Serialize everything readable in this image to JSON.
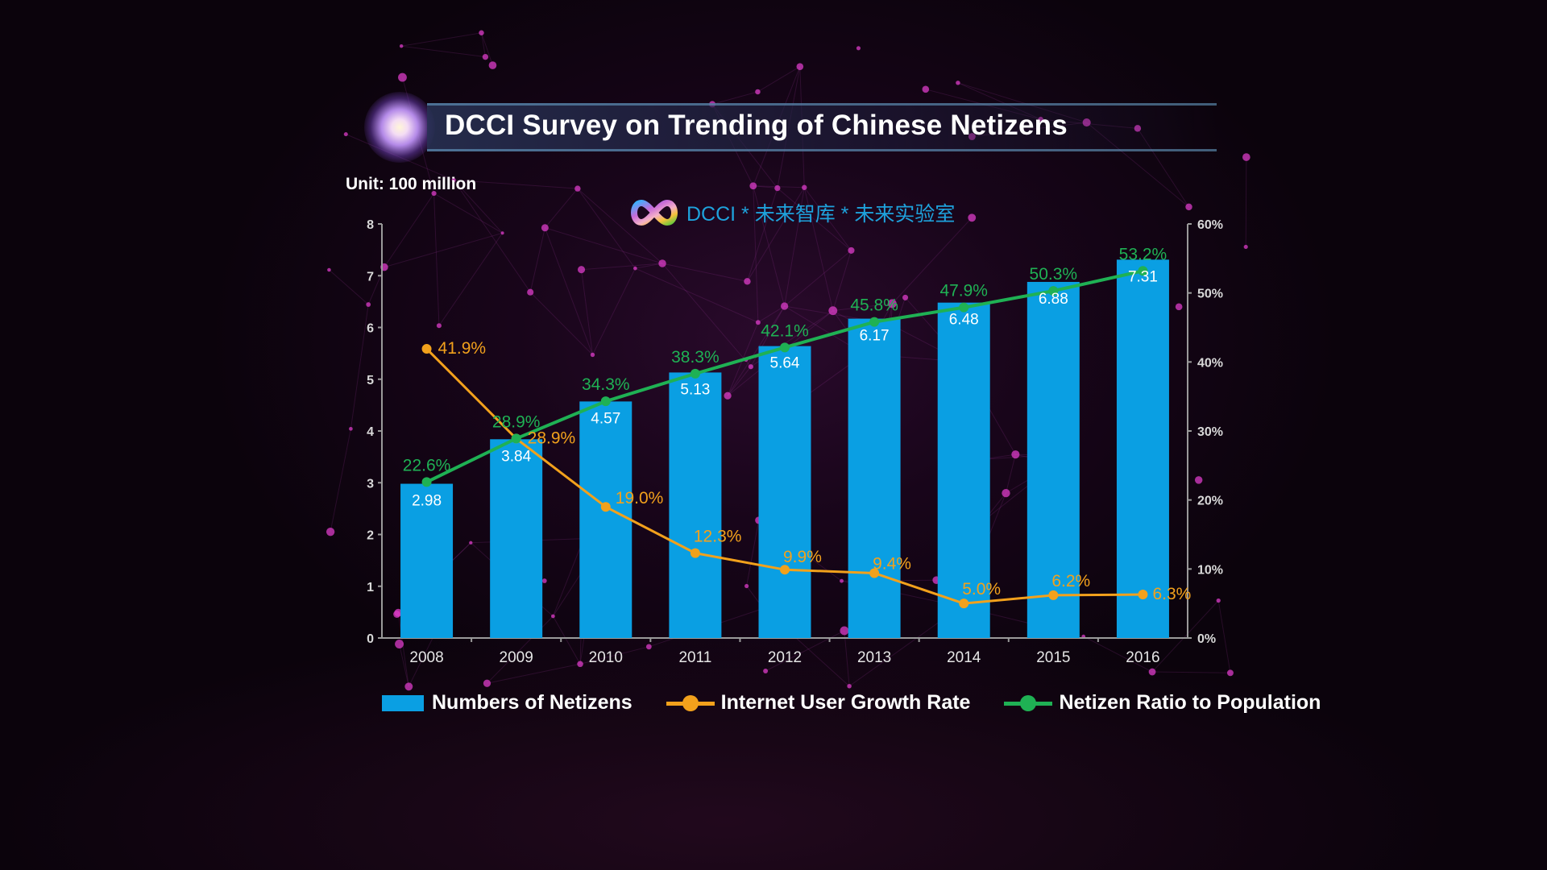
{
  "header": {
    "title": "DCCI Survey on Trending of Chinese Netizens",
    "unit_label": "Unit: 100 million",
    "brand_text": "DCCI * 未来智库 * 未来实验室"
  },
  "colors": {
    "bar": "#0a9fe3",
    "growth_line": "#f2a11c",
    "ratio_line": "#1fb154",
    "text": "#ffffff",
    "axis": "#9a9a9a"
  },
  "chart_data": {
    "type": "bar",
    "title": "DCCI Survey on Trending of Chinese Netizens",
    "subtitle": "Unit: 100 million",
    "categories": [
      "2008",
      "2009",
      "2010",
      "2011",
      "2012",
      "2013",
      "2014",
      "2015",
      "2016"
    ],
    "series": [
      {
        "name": "Numbers of Netizens",
        "type": "bar",
        "axis": "left",
        "values": [
          2.98,
          3.84,
          4.57,
          5.13,
          5.64,
          6.17,
          6.48,
          6.88,
          7.31
        ],
        "labels": [
          "2.98",
          "3.84",
          "4.57",
          "5.13",
          "5.64",
          "6.17",
          "6.48",
          "6.88",
          "7.31"
        ]
      },
      {
        "name": "Internet User Growth Rate",
        "type": "line",
        "axis": "right",
        "values": [
          41.9,
          28.9,
          19.0,
          12.3,
          9.9,
          9.4,
          5.0,
          6.2,
          6.3
        ],
        "labels": [
          "41.9%",
          "28.9%",
          "19.0%",
          "12.3%",
          "9.9%",
          "9.4%",
          "5.0%",
          "6.2%",
          "6.3%"
        ]
      },
      {
        "name": "Netizen Ratio to Population",
        "type": "line",
        "axis": "right",
        "values": [
          22.6,
          28.9,
          34.3,
          38.3,
          42.1,
          45.8,
          47.9,
          50.3,
          53.2
        ],
        "labels": [
          "22.6%",
          "28.9%",
          "34.3%",
          "38.3%",
          "42.1%",
          "45.8%",
          "47.9%",
          "50.3%",
          "53.2%"
        ]
      }
    ],
    "y_left": {
      "label": "",
      "ylim": [
        0,
        8
      ],
      "ticks": [
        "0",
        "1",
        "2",
        "3",
        "4",
        "5",
        "6",
        "7",
        "8"
      ]
    },
    "y_right": {
      "label": "",
      "ylim": [
        0,
        60
      ],
      "ticks": [
        "0%",
        "10%",
        "20%",
        "30%",
        "40%",
        "50%",
        "60%"
      ]
    },
    "xlabel": "",
    "grid": false,
    "legend_position": "bottom"
  }
}
